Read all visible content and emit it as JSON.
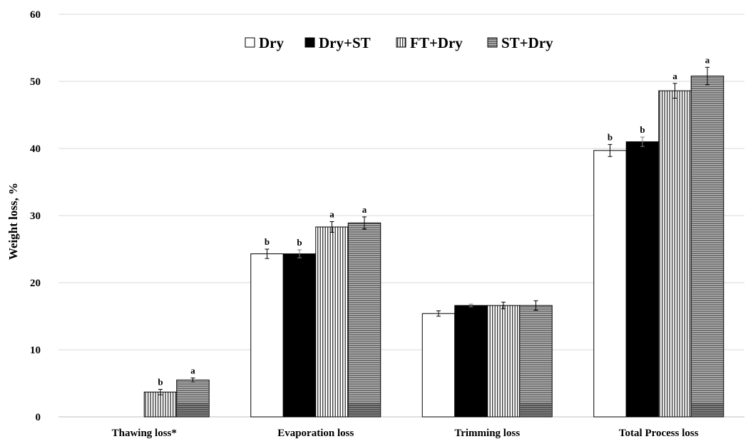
{
  "chart_data": {
    "type": "bar",
    "categories": [
      "Thawing loss*",
      "Evaporation loss",
      "Trimming loss",
      "Total Process loss"
    ],
    "ylabel": "Weight loss, %",
    "xlabel": "",
    "ylim": [
      0,
      60
    ],
    "yticks": [
      0,
      10,
      20,
      30,
      40,
      50,
      60
    ],
    "grid": true,
    "legend_position": "top-center",
    "series": [
      {
        "name": "Dry",
        "pattern": "white",
        "values": [
          null,
          24.3,
          15.4,
          39.7
        ],
        "errors": [
          null,
          0.7,
          0.4,
          0.9
        ],
        "labels": [
          "",
          "b",
          "",
          "b"
        ]
      },
      {
        "name": "Dry+ST",
        "pattern": "solid-black",
        "values": [
          null,
          24.3,
          16.6,
          41.0
        ],
        "errors": [
          null,
          0.6,
          0.2,
          0.7
        ],
        "labels": [
          "",
          "b",
          "",
          "b"
        ]
      },
      {
        "name": "FT+Dry",
        "pattern": "vertical-lines",
        "values": [
          3.7,
          28.3,
          16.6,
          48.6
        ],
        "errors": [
          0.4,
          0.8,
          0.5,
          1.1
        ],
        "labels": [
          "b",
          "a",
          "",
          "a"
        ]
      },
      {
        "name": "ST+Dry",
        "pattern": "horizontal-lines",
        "values": [
          5.5,
          28.9,
          16.6,
          50.8
        ],
        "errors": [
          0.3,
          0.9,
          0.7,
          1.3
        ],
        "labels": [
          "a",
          "a",
          "",
          "a"
        ]
      }
    ]
  }
}
